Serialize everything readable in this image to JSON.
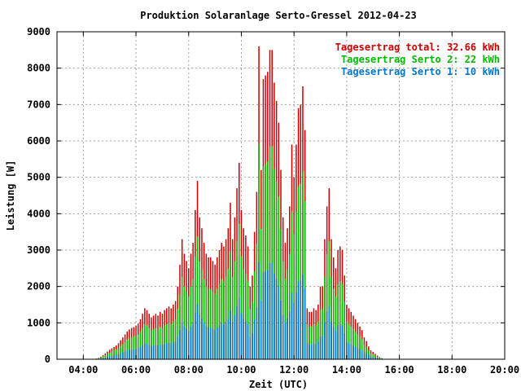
{
  "colors": {
    "total": "#cc0000",
    "serto2": "#00bb00",
    "serto1": "#0077cc",
    "grid": "#a0a0a0",
    "axis": "#000000",
    "text": "#000000"
  },
  "chart_data": {
    "type": "bar",
    "title": "Produktion Solaranlage Serto-Gressel 2012-04-23",
    "xlabel": "Zeit (UTC)",
    "ylabel": "Leistung [W]",
    "x_ticks": [
      "04:00",
      "06:00",
      "08:00",
      "10:00",
      "12:00",
      "14:00",
      "16:00",
      "18:00",
      "20:00"
    ],
    "xlim": [
      "03:00",
      "20:00"
    ],
    "y_ticks": [
      "0",
      "1000",
      "2000",
      "3000",
      "4000",
      "5000",
      "6000",
      "7000",
      "8000",
      "9000"
    ],
    "ylim": [
      0,
      9000
    ],
    "grid": true,
    "legend_position": "top-right",
    "legend": [
      {
        "key": "total",
        "label": "Tagesertrag total: 32.66 kWh"
      },
      {
        "key": "serto2",
        "label": "Tagesertrag Serto 2: 22 kWh"
      },
      {
        "key": "serto1",
        "label": "Tagesertrag Serto 1: 10 kWh"
      }
    ],
    "series": [
      {
        "key": "total",
        "start_time": "04:30",
        "interval_min": 5,
        "values": [
          20,
          40,
          70,
          110,
          160,
          210,
          260,
          300,
          340,
          380,
          440,
          520,
          600,
          680,
          760,
          820,
          860,
          880,
          920,
          980,
          1100,
          1250,
          1400,
          1350,
          1250,
          1150,
          1200,
          1250,
          1200,
          1300,
          1250,
          1350,
          1400,
          1450,
          1400,
          1500,
          1600,
          2000,
          2600,
          3300,
          2900,
          2700,
          2500,
          2900,
          3200,
          4100,
          4900,
          3900,
          3600,
          3200,
          2900,
          2800,
          2800,
          2700,
          2600,
          2800,
          3000,
          3200,
          3100,
          3300,
          3600,
          4300,
          3300,
          3900,
          4700,
          5400,
          4100,
          3600,
          3400,
          3100,
          2000,
          2300,
          3500,
          4600,
          8600,
          5200,
          7700,
          7800,
          7900,
          8500,
          8500,
          7600,
          7100,
          6500,
          5200,
          3900,
          3200,
          3600,
          4200,
          5900,
          5000,
          5900,
          6900,
          7000,
          7500,
          6300,
          1400,
          1300,
          1300,
          1400,
          1350,
          1500,
          2000,
          2000,
          3300,
          4200,
          4700,
          3300,
          2800,
          2500,
          3000,
          3100,
          3000,
          2300,
          1500,
          1400,
          1300,
          1200,
          1100,
          1000,
          900,
          800,
          600,
          500,
          350,
          250,
          200,
          150,
          100,
          60,
          30
        ]
      },
      {
        "key": "serto2",
        "start_time": "04:30",
        "interval_min": 5,
        "values": [
          15,
          30,
          50,
          80,
          110,
          150,
          180,
          210,
          240,
          270,
          310,
          360,
          420,
          480,
          540,
          580,
          600,
          620,
          640,
          680,
          760,
          860,
          960,
          930,
          860,
          790,
          820,
          860,
          820,
          890,
          860,
          920,
          960,
          1000,
          960,
          1030,
          1100,
          1380,
          1790,
          2270,
          2000,
          1860,
          1720,
          2000,
          2200,
          2820,
          3370,
          2690,
          2480,
          2200,
          2000,
          1930,
          1930,
          1860,
          1790,
          1930,
          2070,
          2200,
          2140,
          2270,
          2480,
          2960,
          2270,
          2690,
          3240,
          3720,
          2820,
          2480,
          2340,
          2140,
          1380,
          1580,
          2410,
          3170,
          5920,
          3580,
          5300,
          5370,
          5440,
          5850,
          5850,
          5230,
          4890,
          4470,
          3580,
          2690,
          2200,
          2480,
          2890,
          4060,
          3440,
          4060,
          4750,
          4820,
          5160,
          4340,
          960,
          900,
          900,
          960,
          930,
          1030,
          1380,
          1380,
          2270,
          2890,
          3240,
          2270,
          1930,
          1720,
          2070,
          2140,
          2070,
          1580,
          1030,
          960,
          900,
          830,
          760,
          690,
          620,
          550,
          410,
          340,
          240,
          170,
          140,
          100,
          70,
          40,
          20
        ]
      },
      {
        "key": "serto1",
        "start_time": "04:30",
        "interval_min": 5,
        "values": [
          6,
          12,
          22,
          34,
          50,
          65,
          80,
          93,
          105,
          118,
          136,
          161,
          186,
          211,
          236,
          254,
          267,
          273,
          285,
          304,
          341,
          388,
          434,
          419,
          388,
          357,
          372,
          388,
          372,
          403,
          388,
          419,
          434,
          450,
          434,
          465,
          496,
          620,
          806,
          1023,
          899,
          837,
          775,
          899,
          992,
          1271,
          1519,
          1209,
          1116,
          992,
          899,
          868,
          868,
          837,
          806,
          868,
          930,
          992,
          961,
          1023,
          1116,
          1333,
          1023,
          1209,
          1457,
          1674,
          1271,
          1116,
          1054,
          961,
          620,
          713,
          1085,
          1426,
          2666,
          1612,
          2387,
          2418,
          2449,
          2635,
          2635,
          2356,
          2201,
          2015,
          1612,
          1209,
          992,
          1116,
          1302,
          1829,
          1550,
          1829,
          2139,
          2170,
          2325,
          1953,
          434,
          403,
          403,
          434,
          419,
          465,
          620,
          620,
          1023,
          1302,
          1457,
          1023,
          868,
          775,
          930,
          961,
          930,
          713,
          465,
          434,
          403,
          372,
          341,
          310,
          279,
          248,
          186,
          155,
          109,
          78,
          62,
          47,
          31,
          19,
          9
        ]
      }
    ]
  }
}
